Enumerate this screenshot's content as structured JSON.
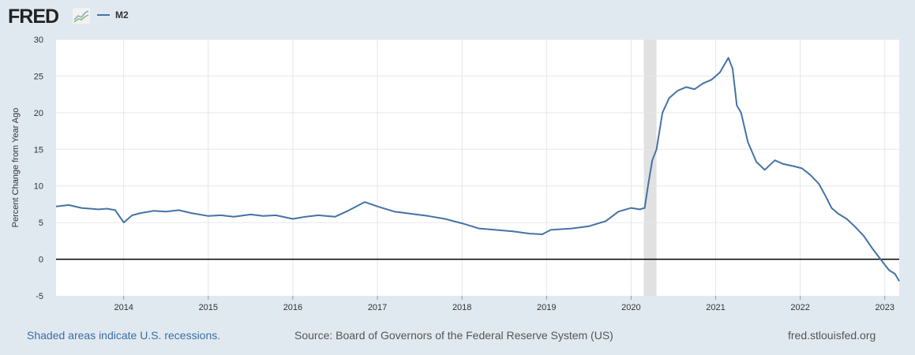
{
  "header": {
    "logo": "FRED",
    "logo_icon": "line-chart-icon"
  },
  "chart_data": {
    "type": "line",
    "title": "",
    "ylabel": "Percent Change from Year Ago",
    "xlabel": "",
    "xlim": [
      2013.2,
      2023.17
    ],
    "ylim": [
      -5,
      30
    ],
    "yticks": [
      -5,
      0,
      5,
      10,
      15,
      20,
      25,
      30
    ],
    "xticks": [
      "2014",
      "2015",
      "2016",
      "2017",
      "2018",
      "2019",
      "2020",
      "2021",
      "2022",
      "2023"
    ],
    "grid": true,
    "legend_position": "top-left",
    "recessions": [
      [
        2020.15,
        2020.3
      ]
    ],
    "series": [
      {
        "name": "M2",
        "color": "#4572a7",
        "x": [
          2013.2,
          2013.35,
          2013.5,
          2013.7,
          2013.8,
          2013.9,
          2014.0,
          2014.1,
          2014.2,
          2014.35,
          2014.5,
          2014.65,
          2014.8,
          2015.0,
          2015.15,
          2015.3,
          2015.5,
          2015.65,
          2015.8,
          2016.0,
          2016.15,
          2016.3,
          2016.5,
          2016.65,
          2016.85,
          2017.0,
          2017.2,
          2017.4,
          2017.6,
          2017.8,
          2018.0,
          2018.2,
          2018.4,
          2018.6,
          2018.8,
          2018.95,
          2019.05,
          2019.3,
          2019.5,
          2019.7,
          2019.85,
          2020.0,
          2020.1,
          2020.16,
          2020.2,
          2020.25,
          2020.3,
          2020.37,
          2020.45,
          2020.55,
          2020.65,
          2020.75,
          2020.85,
          2020.95,
          2021.05,
          2021.15,
          2021.2,
          2021.25,
          2021.3,
          2021.38,
          2021.48,
          2021.58,
          2021.7,
          2021.8,
          2021.92,
          2022.02,
          2022.12,
          2022.22,
          2022.3,
          2022.37,
          2022.45,
          2022.55,
          2022.65,
          2022.75,
          2022.85,
          2022.95,
          2023.05,
          2023.12,
          2023.17
        ],
        "values": [
          7.2,
          7.4,
          7.0,
          6.8,
          6.9,
          6.7,
          5.0,
          6.0,
          6.3,
          6.6,
          6.5,
          6.7,
          6.3,
          5.9,
          6.0,
          5.8,
          6.1,
          5.9,
          6.0,
          5.5,
          5.8,
          6.0,
          5.8,
          6.6,
          7.8,
          7.2,
          6.5,
          6.2,
          5.9,
          5.5,
          4.9,
          4.2,
          4.0,
          3.8,
          3.5,
          3.4,
          4.0,
          4.2,
          4.5,
          5.2,
          6.5,
          7.0,
          6.8,
          7.0,
          10,
          13.5,
          15,
          20,
          22,
          23,
          23.5,
          23.2,
          24,
          24.5,
          25.5,
          27.5,
          26,
          21,
          20,
          16,
          13.3,
          12.2,
          13.5,
          13,
          12.7,
          12.4,
          11.5,
          10.3,
          8.6,
          7,
          6.2,
          5.5,
          4.4,
          3.2,
          1.5,
          0,
          -1.5,
          -2,
          -3.0
        ]
      }
    ]
  },
  "footer": {
    "note": "Shaded areas indicate U.S. recessions.",
    "source": "Source: Board of Governors of the Federal Reserve System (US)",
    "url": "fred.stlouisfed.org"
  }
}
